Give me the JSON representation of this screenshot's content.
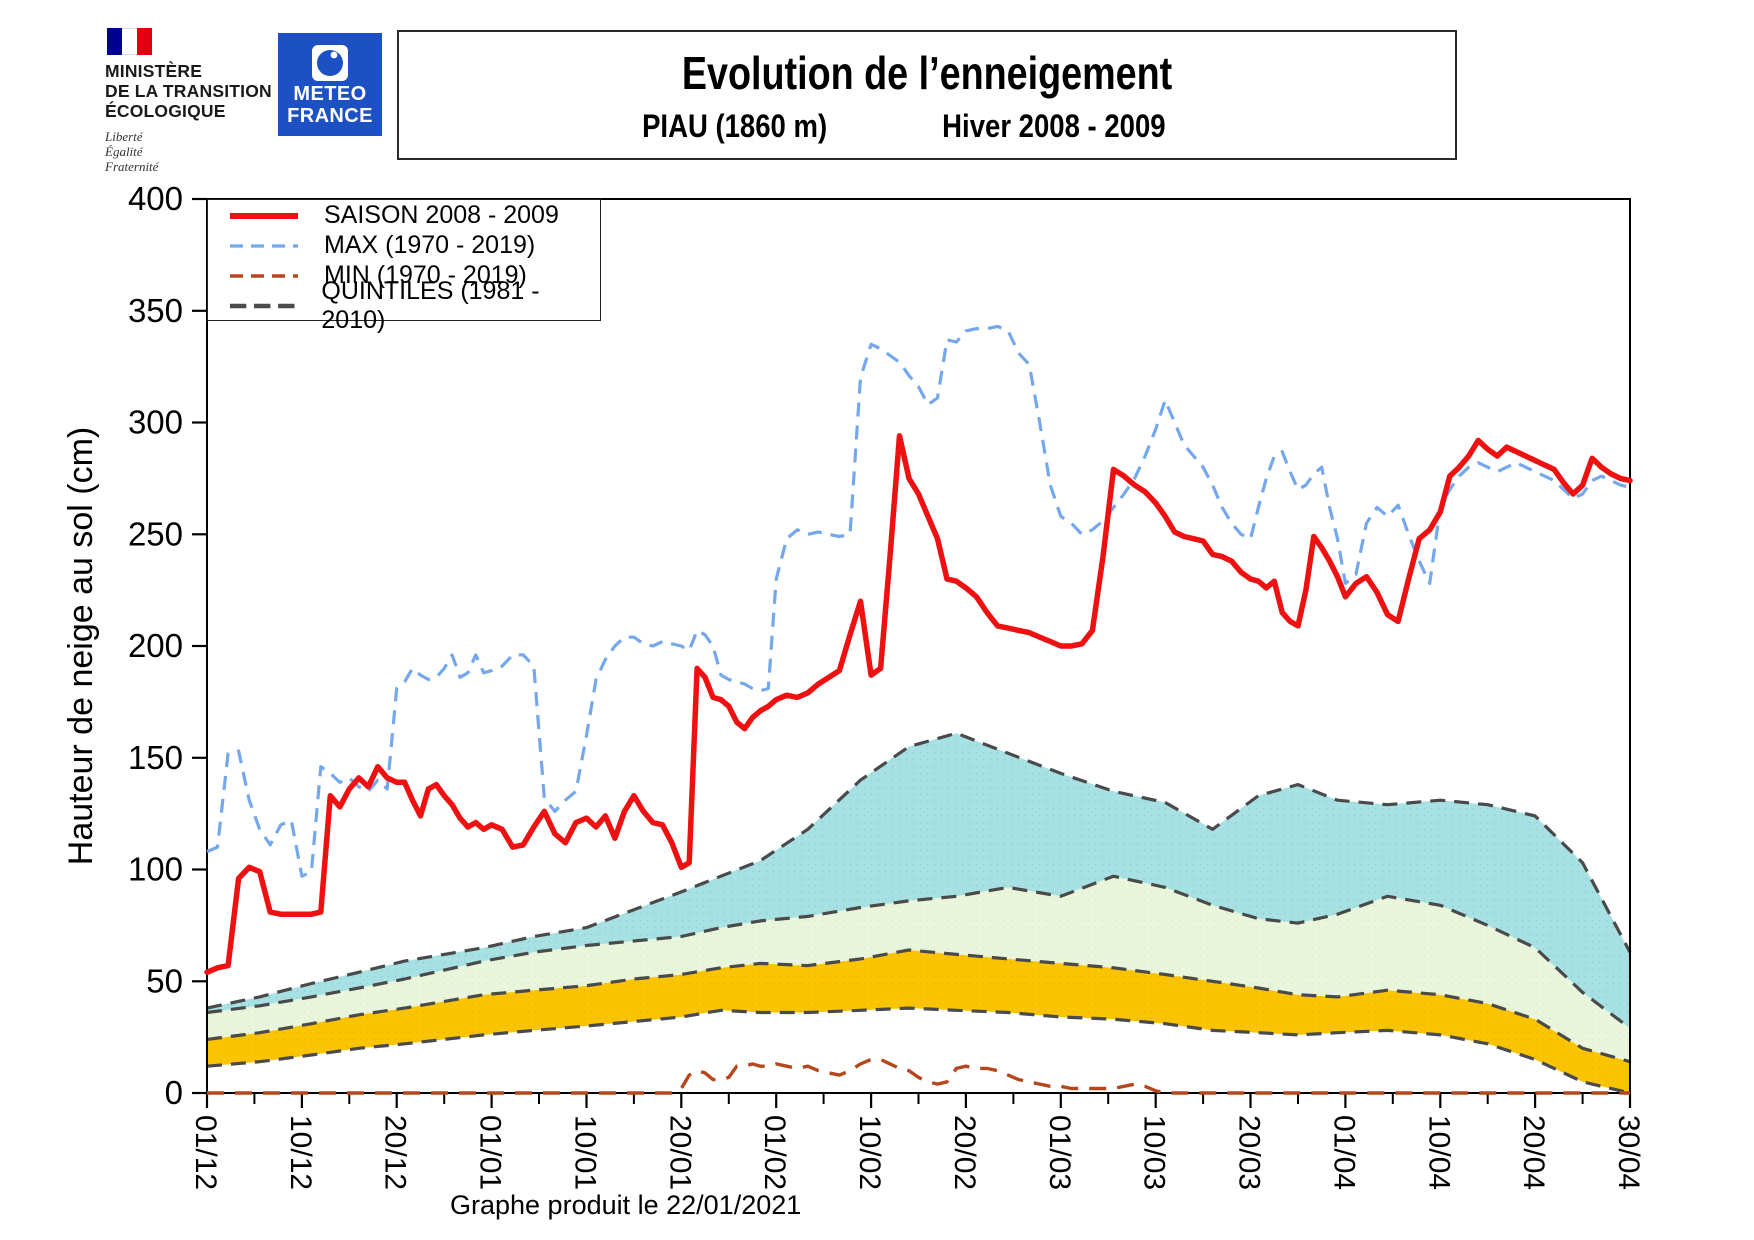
{
  "header": {
    "ministry": {
      "name_lines": [
        "MINISTÈRE",
        "DE LA TRANSITION",
        "ÉCOLOGIQUE"
      ],
      "motto_lines": [
        "Liberté",
        "Égalité",
        "Fraternité"
      ],
      "flag_colors": [
        "#000091",
        "#ffffff",
        "#e1000f"
      ]
    },
    "meteo_france": {
      "line1": "METEO",
      "line2": "FRANCE",
      "bg_color": "#1d50c2"
    },
    "title_box": {
      "title": "Evolution de l’enneigement",
      "subtitle_station": "PIAU (1860 m)",
      "subtitle_season": "Hiver   2008 - 2009"
    }
  },
  "legend": {
    "entries": [
      {
        "label": "SAISON 2008 - 2009",
        "color": "#ee1111",
        "width": 6,
        "dash": ""
      },
      {
        "label": "MAX (1970 - 2019)",
        "color": "#74a7ec",
        "width": 3.2,
        "dash": "13 8"
      },
      {
        "label": "MIN (1970 - 2019)",
        "color": "#b5471d",
        "width": 3.4,
        "dash": "13 8"
      },
      {
        "label": "QUINTILES (1981 - 2010)",
        "color": "#4a4a4a",
        "width": 4.6,
        "dash": "17 8"
      }
    ]
  },
  "caption": "Graphe produit le 22/01/2021",
  "chart_data": {
    "type": "line",
    "title": "Evolution de l'enneigement - PIAU (1860 m) - Hiver 2008 - 2009",
    "ylabel": "Hauteur de neige au sol (cm)",
    "ylim": [
      0,
      400
    ],
    "yticks": [
      0,
      50,
      100,
      150,
      200,
      250,
      300,
      350,
      400
    ],
    "x_unit": "jour depuis le 01/12",
    "xticks": [
      {
        "label": "01/12",
        "day": 0
      },
      {
        "label": "10/12",
        "day": 9
      },
      {
        "label": "20/12",
        "day": 19
      },
      {
        "label": "01/01",
        "day": 31
      },
      {
        "label": "10/01",
        "day": 40
      },
      {
        "label": "20/01",
        "day": 50
      },
      {
        "label": "01/02",
        "day": 62
      },
      {
        "label": "10/02",
        "day": 71
      },
      {
        "label": "20/02",
        "day": 81
      },
      {
        "label": "01/03",
        "day": 90
      },
      {
        "label": "10/03",
        "day": 99
      },
      {
        "label": "20/03",
        "day": 109
      },
      {
        "label": "01/04",
        "day": 121
      },
      {
        "label": "10/04",
        "day": 130
      },
      {
        "label": "20/04",
        "day": 140
      },
      {
        "label": "30/04",
        "day": 150
      }
    ],
    "grid": false,
    "legend_position": "top-left",
    "series": [
      {
        "name": "SAISON 2008 - 2009",
        "style": "solid",
        "color": "#ee1111",
        "width": 5.5,
        "day_start": 0,
        "day_step": 1,
        "values": [
          54,
          56,
          57,
          96,
          101,
          99,
          81,
          80,
          80,
          80,
          80,
          81,
          133,
          128,
          136,
          141,
          137,
          146,
          141,
          139,
          139,
          131,
          124,
          136,
          138,
          133,
          129,
          123,
          119,
          121,
          118,
          120,
          118,
          110,
          111,
          119,
          126,
          116,
          112,
          121,
          123,
          119,
          124,
          114,
          126,
          133,
          126,
          121,
          120,
          112,
          101,
          103,
          190,
          186,
          177,
          176,
          173,
          166,
          163,
          168,
          171,
          173,
          176,
          178,
          177,
          179,
          183,
          186,
          189,
          205,
          220,
          187,
          190,
          240,
          294,
          275,
          268,
          258,
          248,
          230,
          229,
          226,
          222,
          215,
          209,
          208,
          207,
          206,
          204,
          202,
          200,
          200,
          201,
          207,
          240,
          279,
          276,
          272,
          269,
          264,
          258,
          251,
          249,
          248,
          247,
          241,
          240,
          238,
          233,
          230,
          229,
          226,
          229,
          215,
          211,
          209,
          225,
          249,
          244,
          238,
          231,
          222,
          228,
          231,
          224,
          214,
          211,
          230,
          248,
          252,
          260,
          276,
          280,
          285,
          292,
          288,
          285,
          289,
          287,
          285,
          283,
          281,
          279,
          273,
          268,
          272,
          284,
          280,
          277,
          275,
          274
        ]
      },
      {
        "name": "MAX (1970 - 2019)",
        "style": "dashed",
        "color": "#74a7ec",
        "width": 3.2,
        "day_start": 0,
        "day_step": 1,
        "values": [
          108,
          110,
          152,
          153,
          131,
          118,
          111,
          120,
          122,
          97,
          99,
          146,
          143,
          139,
          141,
          137,
          135,
          140,
          136,
          181,
          184,
          190,
          187,
          185,
          186,
          190,
          196,
          186,
          188,
          196,
          188,
          189,
          191,
          196,
          196,
          191,
          132,
          126,
          131,
          135,
          160,
          185,
          194,
          200,
          204,
          204,
          201,
          200,
          202,
          201,
          200,
          198,
          207,
          205,
          200,
          187,
          185,
          184,
          183,
          181,
          180,
          181,
          230,
          248,
          252,
          250,
          251,
          250,
          249,
          250,
          320,
          335,
          333,
          330,
          327,
          321,
          316,
          308,
          311,
          337,
          336,
          341,
          342,
          342,
          343,
          341,
          331,
          326,
          300,
          272,
          258,
          255,
          250,
          252,
          256,
          262,
          268,
          275,
          285,
          297,
          310,
          300,
          290,
          285,
          280,
          272,
          262,
          255,
          250,
          248,
          262,
          275,
          285,
          287,
          278,
          270,
          272,
          277,
          280,
          262,
          248,
          228,
          232,
          255,
          262,
          258,
          263,
          250,
          238,
          228,
          262,
          270,
          276,
          280,
          282,
          280,
          278,
          280,
          282,
          280,
          278,
          276,
          274,
          270,
          266,
          268,
          274,
          276,
          274,
          272,
          271
        ]
      },
      {
        "name": "MIN (1970 - 2019)",
        "style": "dashed",
        "color": "#b5471d",
        "width": 3.4,
        "day_start": 0,
        "day_step": 1,
        "values": [
          0,
          0,
          0,
          0,
          0,
          0,
          0,
          0,
          0,
          0,
          0,
          0,
          0,
          0,
          0,
          0,
          0,
          0,
          0,
          0,
          0,
          0,
          0,
          0,
          0,
          0,
          0,
          0,
          0,
          0,
          0,
          0,
          0,
          0,
          0,
          0,
          0,
          0,
          0,
          0,
          0,
          0,
          0,
          0,
          0,
          0,
          0,
          0,
          0,
          0,
          2,
          8,
          10,
          9,
          6,
          6,
          7,
          12,
          12,
          13,
          12,
          12,
          13,
          12,
          11,
          12,
          10,
          9,
          8,
          10,
          13,
          15,
          15,
          13,
          11,
          10,
          7,
          5,
          4,
          5,
          11,
          12,
          11,
          11,
          10,
          8,
          6,
          5,
          4,
          3,
          3,
          2,
          2,
          2,
          2,
          2,
          3,
          4,
          3,
          1,
          0,
          0,
          0,
          0,
          0,
          0,
          0,
          0,
          0,
          0,
          0,
          0,
          0,
          0,
          0,
          0,
          0,
          0,
          0,
          0,
          0,
          0,
          0,
          0,
          0,
          0,
          0,
          0,
          0,
          0,
          0,
          0,
          0,
          0,
          0,
          0,
          0,
          0,
          0,
          0,
          0,
          0,
          0,
          0,
          0,
          0,
          0,
          0,
          0,
          0,
          0
        ]
      }
    ],
    "quintiles": {
      "name": "QUINTILES (1981 - 2010)",
      "line_color": "#4a4a4a",
      "day_start": 0,
      "day_step": 5,
      "q20": [
        12,
        14,
        17,
        20,
        22,
        24,
        26,
        28,
        30,
        32,
        34,
        37,
        36,
        36,
        37,
        38,
        37,
        36,
        34,
        33,
        31,
        28,
        27,
        26,
        27,
        28,
        26,
        22,
        15,
        5,
        0
      ],
      "q40": [
        24,
        27,
        31,
        35,
        38,
        41,
        44,
        46,
        48,
        51,
        53,
        56,
        58,
        57,
        60,
        64,
        62,
        60,
        58,
        56,
        53,
        50,
        47,
        44,
        43,
        46,
        44,
        40,
        33,
        20,
        14
      ],
      "q60": [
        36,
        39,
        43,
        47,
        51,
        55,
        59,
        63,
        66,
        68,
        70,
        74,
        77,
        79,
        83,
        86,
        88,
        92,
        88,
        97,
        92,
        84,
        78,
        76,
        80,
        88,
        84,
        75,
        65,
        45,
        29
      ],
      "q80": [
        38,
        43,
        49,
        54,
        59,
        62,
        65,
        70,
        74,
        82,
        90,
        97,
        104,
        118,
        140,
        155,
        161,
        152,
        143,
        135,
        130,
        118,
        133,
        138,
        131,
        129,
        131,
        129,
        124,
        103,
        63
      ],
      "band_colors": {
        "q20_q40": "#fac400",
        "q40_q60": "#e9f6dc",
        "q60_q80": "#a7e1e3"
      }
    }
  }
}
